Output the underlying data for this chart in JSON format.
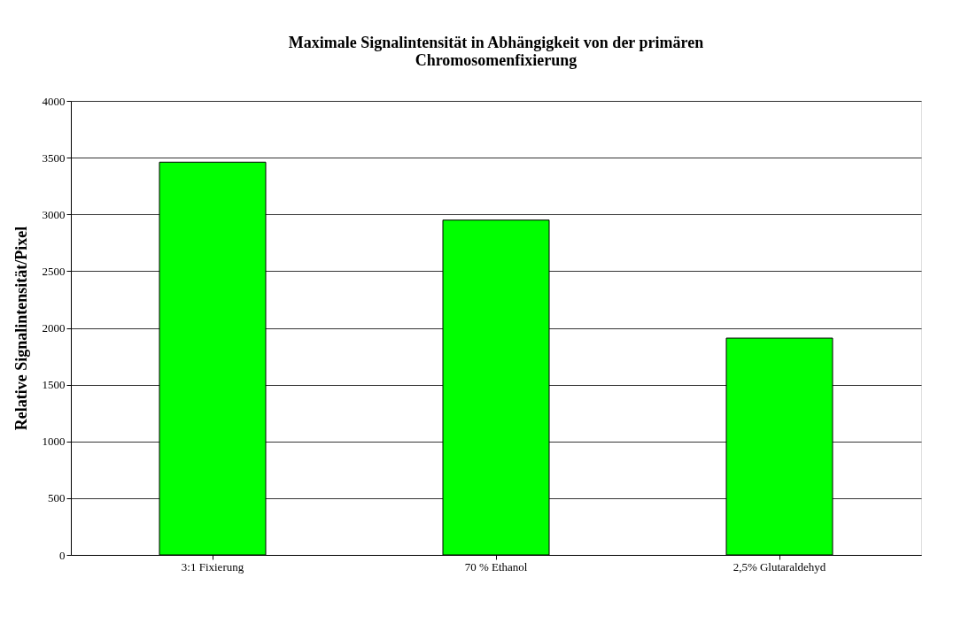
{
  "chart_data": {
    "type": "bar",
    "title": "Maximale Signalintensität in Abhängigkeit von der primären Chromosomenfixierung",
    "ylabel": "Relative Signalintensität/Pixel",
    "categories": [
      "3:1 Fixierung",
      "70 % Ethanol",
      "2,5% Glutaraldehyd"
    ],
    "series": [
      {
        "color": "#00ff00",
        "values": [
          3460,
          2950,
          1910
        ]
      }
    ],
    "ylim": [
      0,
      4000
    ],
    "yticks": [
      0,
      500,
      1000,
      1500,
      2000,
      2500,
      3000,
      3500,
      4000
    ],
    "grid": "y"
  }
}
